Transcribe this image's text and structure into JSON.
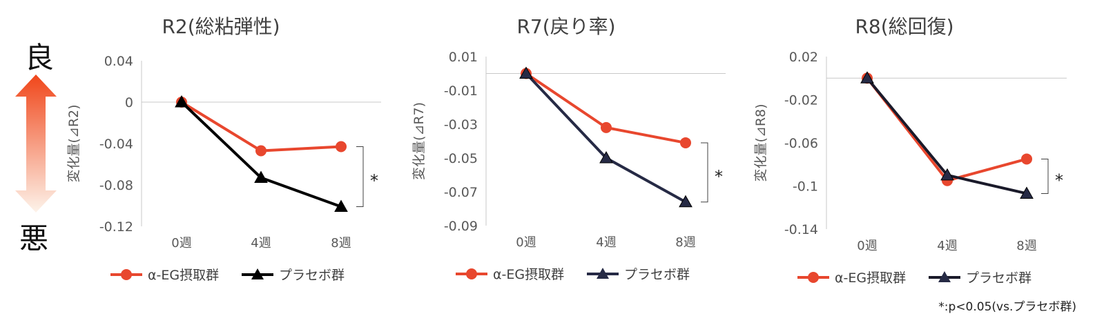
{
  "side_labels": {
    "good": "良",
    "bad": "悪"
  },
  "footnote": "*:p<0.05(vs.プラセボ群)",
  "colors": {
    "alpha": "#e8472e",
    "placebo_marker": "#000000",
    "placebo_line_1": "#000000",
    "placebo_line_2": "#262a45",
    "placebo_line_3": "#1a1a2a",
    "axis": "#c8c8c8",
    "tick_text": "#595959",
    "arrow_top": "#f0461a",
    "arrow_bottom": "#fdf3ea"
  },
  "chart_data": [
    {
      "type": "line",
      "title": "R2(総粘弾性)",
      "ylabel": "変化量(⊿R2)",
      "categories": [
        "0週",
        "4週",
        "8週"
      ],
      "yticks": [
        "0.04",
        "0",
        "-0.04",
        "-0.08",
        "-0.12"
      ],
      "ylim": [
        -0.12,
        0.04
      ],
      "series": [
        {
          "name": "α-EG摂取群",
          "values": [
            0,
            -0.047,
            -0.043
          ]
        },
        {
          "name": "プラセボ群",
          "values": [
            0,
            -0.073,
            -0.101
          ]
        }
      ],
      "significance": "*",
      "legend_position": "bottom"
    },
    {
      "type": "line",
      "title": "R7(戻り率)",
      "ylabel": "変化量(⊿R7)",
      "categories": [
        "0週",
        "4週",
        "8週"
      ],
      "yticks": [
        "0.01",
        "-0.01",
        "-0.03",
        "-0.05",
        "-0.07",
        "-0.09"
      ],
      "ylim": [
        -0.09,
        0.01
      ],
      "series": [
        {
          "name": "α-EG摂取群",
          "values": [
            0,
            -0.032,
            -0.041
          ]
        },
        {
          "name": "プラセボ群",
          "values": [
            0,
            -0.05,
            -0.076
          ]
        }
      ],
      "significance": "*",
      "legend_position": "bottom"
    },
    {
      "type": "line",
      "title": "R8(総回復)",
      "ylabel": "変化量(⊿R8)",
      "categories": [
        "0週",
        "4週",
        "8週"
      ],
      "yticks": [
        "0.02",
        "-0.02",
        "-0.06",
        "-0.1",
        "-0.14"
      ],
      "ylim": [
        -0.14,
        0.02
      ],
      "series": [
        {
          "name": "α-EG摂取群",
          "values": [
            0,
            -0.095,
            -0.075
          ]
        },
        {
          "name": "プラセボ群",
          "values": [
            0,
            -0.09,
            -0.107
          ]
        }
      ],
      "significance": "*",
      "legend_position": "bottom"
    }
  ]
}
